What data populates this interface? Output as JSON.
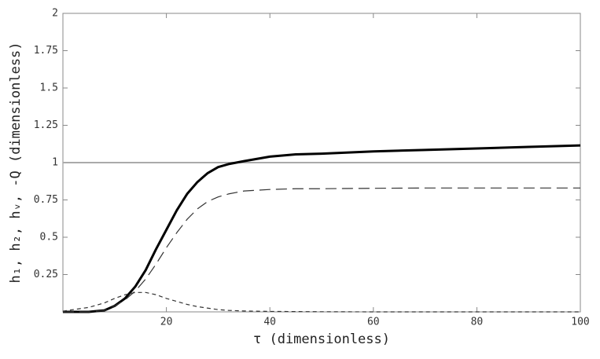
{
  "chart_data": {
    "type": "line",
    "xlabel": "τ (dimensionless)",
    "ylabel": "h₁, h₂, hᵥ, -Q (dimensionless)",
    "x": [
      0,
      5,
      8,
      10,
      12,
      14,
      16,
      18,
      20,
      22,
      24,
      26,
      28,
      30,
      32,
      35,
      40,
      45,
      50,
      60,
      70,
      80,
      90,
      100
    ],
    "series": [
      {
        "color": "#000000",
        "style": "solid",
        "width": 3,
        "values": [
          0,
          0,
          0.01,
          0.04,
          0.09,
          0.17,
          0.28,
          0.42,
          0.55,
          0.68,
          0.79,
          0.87,
          0.93,
          0.97,
          0.99,
          1.01,
          1.04,
          1.055,
          1.06,
          1.075,
          1.085,
          1.095,
          1.105,
          1.115
        ]
      },
      {
        "color": "#333333",
        "style": "longdash",
        "width": 1.2,
        "values": [
          0,
          0,
          0.01,
          0.04,
          0.08,
          0.14,
          0.22,
          0.32,
          0.43,
          0.53,
          0.62,
          0.69,
          0.74,
          0.77,
          0.79,
          0.81,
          0.82,
          0.825,
          0.825,
          0.828,
          0.83,
          0.83,
          0.83,
          0.83
        ]
      },
      {
        "color": "#333333",
        "style": "shortdash",
        "width": 1.2,
        "values": [
          0.005,
          0.03,
          0.06,
          0.09,
          0.115,
          0.13,
          0.13,
          0.115,
          0.09,
          0.07,
          0.05,
          0.035,
          0.025,
          0.015,
          0.01,
          0.006,
          0.003,
          0.002,
          0.001,
          0,
          0,
          0,
          0,
          0
        ]
      }
    ],
    "reference_line": {
      "value": 1,
      "color": "#aaaaaa"
    },
    "xlim": [
      0,
      100
    ],
    "xticks": [
      20,
      40,
      60,
      80,
      100
    ],
    "ylim": [
      0,
      2
    ],
    "yticks": [
      0.25,
      0.5,
      0.75,
      1,
      1.25,
      1.5,
      1.75,
      2
    ]
  }
}
